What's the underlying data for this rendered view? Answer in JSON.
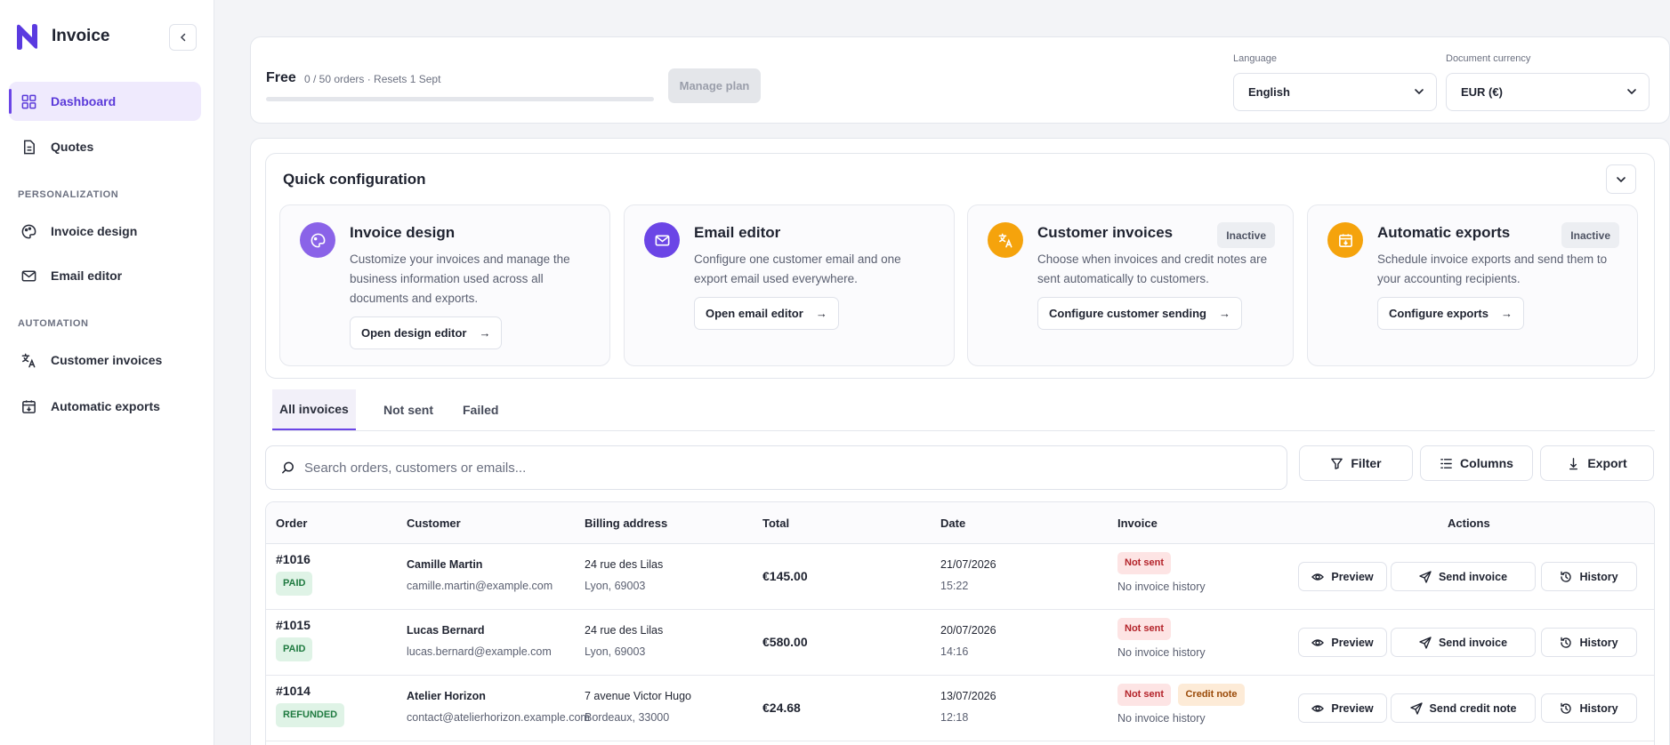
{
  "app": {
    "name": "Invoice"
  },
  "sidebar": {
    "items": [
      {
        "label": "Dashboard",
        "icon": "grid-icon",
        "active": true
      },
      {
        "label": "Quotes",
        "icon": "document-icon"
      }
    ],
    "sections": [
      {
        "title": "PERSONALIZATION",
        "items": [
          {
            "label": "Invoice design",
            "icon": "palette-icon"
          },
          {
            "label": "Email editor",
            "icon": "mail-icon"
          }
        ]
      },
      {
        "title": "AUTOMATION",
        "items": [
          {
            "label": "Customer invoices",
            "icon": "translate-icon"
          },
          {
            "label": "Automatic exports",
            "icon": "calendar-export-icon"
          }
        ]
      }
    ]
  },
  "plan": {
    "name": "Free",
    "usage": "0 / 50 orders · Resets 1 Sept",
    "progress": 0,
    "manage_label": "Manage plan",
    "language_label": "Language",
    "language_value": "English",
    "currency_label": "Document currency",
    "currency_value": "EUR (€)"
  },
  "quick_config": {
    "title": "Quick configuration",
    "cards": [
      {
        "title": "Invoice design",
        "desc": [
          "Customize your invoices and manage the",
          "business information used across all",
          "documents and exports."
        ],
        "button": "Open design editor",
        "icon_color": "#8a63e8",
        "icon": "palette-icon",
        "status": ""
      },
      {
        "title": "Email editor",
        "desc": [
          "Configure one customer email and one",
          "export email used everywhere."
        ],
        "button": "Open email editor",
        "icon_color": "#6b45e6",
        "icon": "mail-icon",
        "status": ""
      },
      {
        "title": "Customer invoices",
        "desc": [
          "Choose when invoices and credit notes are",
          "sent automatically to customers."
        ],
        "button": "Configure customer sending",
        "icon_color": "#f5a30c",
        "icon": "translate-icon",
        "status": "Inactive"
      },
      {
        "title": "Automatic exports",
        "desc": [
          "Schedule invoice exports and send them to",
          "your accounting recipients."
        ],
        "button": "Configure exports",
        "icon_color": "#f5a30c",
        "icon": "calendar-export-icon",
        "status": "Inactive"
      }
    ],
    "arrow": "→"
  },
  "tabs": [
    "All invoices",
    "Not sent",
    "Failed"
  ],
  "search": {
    "placeholder": "Search orders, customers or emails..."
  },
  "toolbar": {
    "filter": "Filter",
    "columns": "Columns",
    "export": "Export"
  },
  "table": {
    "headers": {
      "order": "Order",
      "customer": "Customer",
      "billing": "Billing address",
      "total": "Total",
      "date": "Date",
      "invoice": "Invoice",
      "actions": "Actions"
    },
    "rows": [
      {
        "order": "#1016",
        "status": "PAID",
        "name": "Camille Martin",
        "email": "camille.martin@example.com",
        "addr1": "24 rue des Lilas",
        "addr2": "Lyon, 69003",
        "total": "€145.00",
        "date": "21/07/2026",
        "time": "15:22",
        "invoice_status": "Not sent",
        "extra_badge": "",
        "history": "No invoice history",
        "preview": "Preview",
        "send": "Send invoice",
        "history_btn": "History"
      },
      {
        "order": "#1015",
        "status": "PAID",
        "name": "Lucas Bernard",
        "email": "lucas.bernard@example.com",
        "addr1": "24 rue des Lilas",
        "addr2": "Lyon, 69003",
        "total": "€580.00",
        "date": "20/07/2026",
        "time": "14:16",
        "invoice_status": "Not sent",
        "extra_badge": "",
        "history": "No invoice history",
        "preview": "Preview",
        "send": "Send invoice",
        "history_btn": "History"
      },
      {
        "order": "#1014",
        "status": "REFUNDED",
        "name": "Atelier Horizon",
        "email": "contact@atelierhorizon.example.com",
        "addr1": "7 avenue Victor Hugo",
        "addr2": "Bordeaux, 33000",
        "total": "€24.68",
        "date": "13/07/2026",
        "time": "12:18",
        "invoice_status": "Not sent",
        "extra_badge": "Credit note",
        "history": "No invoice history",
        "preview": "Preview",
        "send": "Send credit note",
        "history_btn": "History"
      }
    ]
  }
}
